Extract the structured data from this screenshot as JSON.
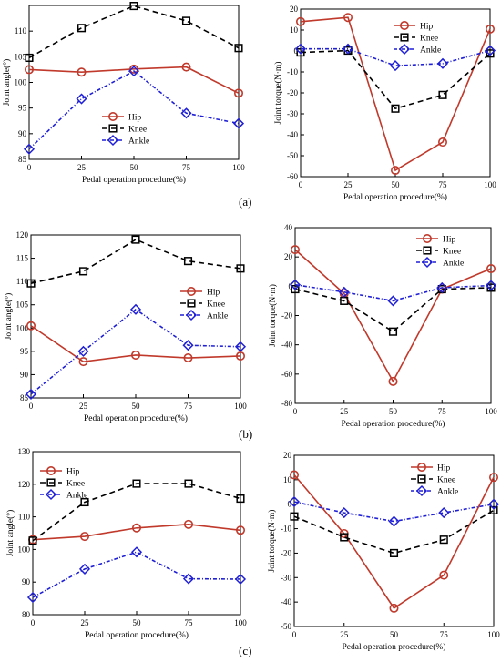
{
  "panel_labels": [
    "(a)",
    "(b)",
    "(c)"
  ],
  "chart_data": [
    {
      "type": "line",
      "xlabel": "Pedal operation procedure(%)",
      "ylabel": "Joint angle(°)",
      "x": [
        0,
        25,
        50,
        75,
        100
      ],
      "xlim": [
        0,
        100
      ],
      "ylim": [
        85,
        115
      ],
      "yticks": [
        85,
        90,
        95,
        100,
        105,
        110
      ],
      "legend": "middle-right",
      "series": [
        {
          "name": "Hip",
          "values": [
            102.5,
            102.0,
            102.6,
            103.0,
            97.9
          ],
          "color": "#c0392b"
        },
        {
          "name": "Knee",
          "values": [
            104.8,
            110.6,
            114.9,
            112.0,
            106.7
          ],
          "color": "#000000"
        },
        {
          "name": "Ankle",
          "values": [
            87.0,
            96.8,
            102.2,
            94.0,
            92.0
          ],
          "color": "#1f1fd6"
        }
      ]
    },
    {
      "type": "line",
      "xlabel": "Pedal operation procedure(%)",
      "ylabel": "Joint torque(N·m)",
      "x": [
        0,
        25,
        50,
        75,
        100
      ],
      "xlim": [
        0,
        100
      ],
      "ylim": [
        -60,
        20
      ],
      "yticks": [
        -60,
        -50,
        -40,
        -30,
        -20,
        -10,
        0,
        10,
        20
      ],
      "legend": "top-right",
      "series": [
        {
          "name": "Hip",
          "values": [
            14.0,
            16.0,
            -57.0,
            -43.5,
            10.5
          ],
          "color": "#c0392b"
        },
        {
          "name": "Knee",
          "values": [
            -0.7,
            0.2,
            -27.5,
            -21.0,
            -1.2
          ],
          "color": "#000000"
        },
        {
          "name": "Ankle",
          "values": [
            1.0,
            1.0,
            -7.0,
            -6.0,
            0.2
          ],
          "color": "#1f1fd6"
        }
      ]
    },
    {
      "type": "line",
      "xlabel": "Pedal operation procedure(%)",
      "ylabel": "Joint angle(°)",
      "x": [
        0,
        25,
        50,
        75,
        100
      ],
      "xlim": [
        0,
        100
      ],
      "ylim": [
        85,
        120
      ],
      "yticks": [
        85,
        90,
        95,
        100,
        105,
        110,
        115,
        120
      ],
      "legend": "middle-right",
      "series": [
        {
          "name": "Hip",
          "values": [
            100.5,
            92.8,
            94.2,
            93.6,
            94.0
          ],
          "color": "#c0392b"
        },
        {
          "name": "Knee",
          "values": [
            109.6,
            112.2,
            119.0,
            114.4,
            112.8
          ],
          "color": "#000000"
        },
        {
          "name": "Ankle",
          "values": [
            85.8,
            95.0,
            104.0,
            96.3,
            96.0
          ],
          "color": "#1f1fd6"
        }
      ]
    },
    {
      "type": "line",
      "xlabel": "Pedal operation procedure(%)",
      "ylabel": "Joint torque(N·m)",
      "x": [
        0,
        25,
        50,
        75,
        100
      ],
      "xlim": [
        0,
        100
      ],
      "ylim": [
        -80,
        40
      ],
      "yticks": [
        -80,
        -60,
        -40,
        -20,
        0,
        20,
        40
      ],
      "legend": "top-right",
      "series": [
        {
          "name": "Hip",
          "values": [
            25.0,
            -5.0,
            -65.0,
            -2.0,
            12.0
          ],
          "color": "#c0392b"
        },
        {
          "name": "Knee",
          "values": [
            -2.0,
            -10.0,
            -31.0,
            -2.0,
            -1.0
          ],
          "color": "#000000"
        },
        {
          "name": "Ankle",
          "values": [
            1.0,
            -4.0,
            -10.0,
            -1.0,
            0.5
          ],
          "color": "#1f1fd6"
        }
      ]
    },
    {
      "type": "line",
      "xlabel": "Pedal operation procedure(%)",
      "ylabel": "Joint angle(°)",
      "x": [
        0,
        25,
        50,
        75,
        100
      ],
      "xlim": [
        0,
        100
      ],
      "ylim": [
        80,
        130
      ],
      "yticks": [
        80,
        90,
        100,
        110,
        120,
        130
      ],
      "legend": "top-left",
      "series": [
        {
          "name": "Hip",
          "values": [
            103.0,
            104.0,
            106.6,
            107.7,
            105.9
          ],
          "color": "#c0392b"
        },
        {
          "name": "Knee",
          "values": [
            102.7,
            114.5,
            120.2,
            120.2,
            115.6
          ],
          "color": "#000000"
        },
        {
          "name": "Ankle",
          "values": [
            85.3,
            94.0,
            99.2,
            91.0,
            90.9
          ],
          "color": "#1f1fd6"
        }
      ]
    },
    {
      "type": "line",
      "xlabel": "Pedal operation procedure(%)",
      "ylabel": "Joint torque(N·m)",
      "x": [
        0,
        25,
        50,
        75,
        100
      ],
      "xlim": [
        0,
        100
      ],
      "ylim": [
        -50,
        20
      ],
      "yticks": [
        -50,
        -40,
        -30,
        -20,
        -10,
        0,
        10,
        20
      ],
      "legend": "top-right",
      "series": [
        {
          "name": "Hip",
          "values": [
            12.0,
            -12.0,
            -42.5,
            -29.0,
            11.0
          ],
          "color": "#c0392b"
        },
        {
          "name": "Knee",
          "values": [
            -5.0,
            -13.5,
            -20.0,
            -14.5,
            -2.5
          ],
          "color": "#000000"
        },
        {
          "name": "Ankle",
          "values": [
            1.0,
            -3.5,
            -7.0,
            -3.5,
            0.0
          ],
          "color": "#1f1fd6"
        }
      ]
    }
  ]
}
